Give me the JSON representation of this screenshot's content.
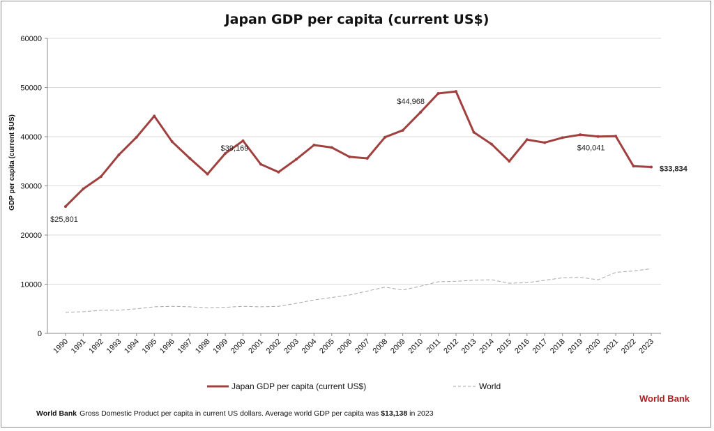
{
  "chart_data": {
    "type": "line",
    "title": "Japan GDP per capita (current US$)",
    "ylabel": "GDP per capita (current $US)",
    "xlabel": "",
    "ylim": [
      0,
      60000
    ],
    "yticks": [
      "0",
      "10000",
      "20000",
      "30000",
      "40000",
      "50000",
      "60000"
    ],
    "grid": true,
    "legend": "bottom",
    "categories": [
      "1990",
      "1991",
      "1992",
      "1993",
      "1994",
      "1995",
      "1996",
      "1997",
      "1998",
      "1999",
      "2000",
      "2001",
      "2002",
      "2003",
      "2004",
      "2005",
      "2006",
      "2007",
      "2008",
      "2009",
      "2010",
      "2011",
      "2012",
      "2013",
      "2014",
      "2015",
      "2016",
      "2017",
      "2018",
      "2019",
      "2020",
      "2021",
      "2022",
      "2023"
    ],
    "series": [
      {
        "name": "Japan GDP per capita (current US$)",
        "color": "#a0403f",
        "style": "solid-markers",
        "values": [
          25801,
          29400,
          31900,
          36300,
          39900,
          44200,
          39000,
          35600,
          32400,
          36600,
          39169,
          34400,
          32800,
          35400,
          38300,
          37800,
          35900,
          35600,
          39900,
          41300,
          44968,
          48800,
          49200,
          40900,
          38500,
          35000,
          39400,
          38800,
          39800,
          40400,
          40041,
          40100,
          34000,
          33834
        ]
      },
      {
        "name": "World",
        "color": "#a6a6a6",
        "style": "dashed",
        "values": [
          4300,
          4400,
          4700,
          4700,
          5000,
          5400,
          5500,
          5400,
          5200,
          5300,
          5500,
          5400,
          5500,
          6100,
          6800,
          7300,
          7800,
          8600,
          9400,
          8800,
          9600,
          10500,
          10600,
          10800,
          10900,
          10200,
          10300,
          10800,
          11300,
          11400,
          10900,
          12400,
          12700,
          13138
        ]
      }
    ],
    "annotations": [
      {
        "year": "1990",
        "text": "$25,801"
      },
      {
        "year": "2000",
        "text": "$39,169"
      },
      {
        "year": "2010",
        "text": "$44,968"
      },
      {
        "year": "2020",
        "text": "$40,041"
      },
      {
        "year": "2023",
        "text": "$33,834"
      }
    ]
  },
  "source_badge": "World Bank",
  "footer": {
    "source": "World Bank",
    "text": "Gross Domestic Product per capita in current US dollars.  Average world GDP per capita was ",
    "highlight": "$13,138",
    "tail": " in 2023"
  }
}
